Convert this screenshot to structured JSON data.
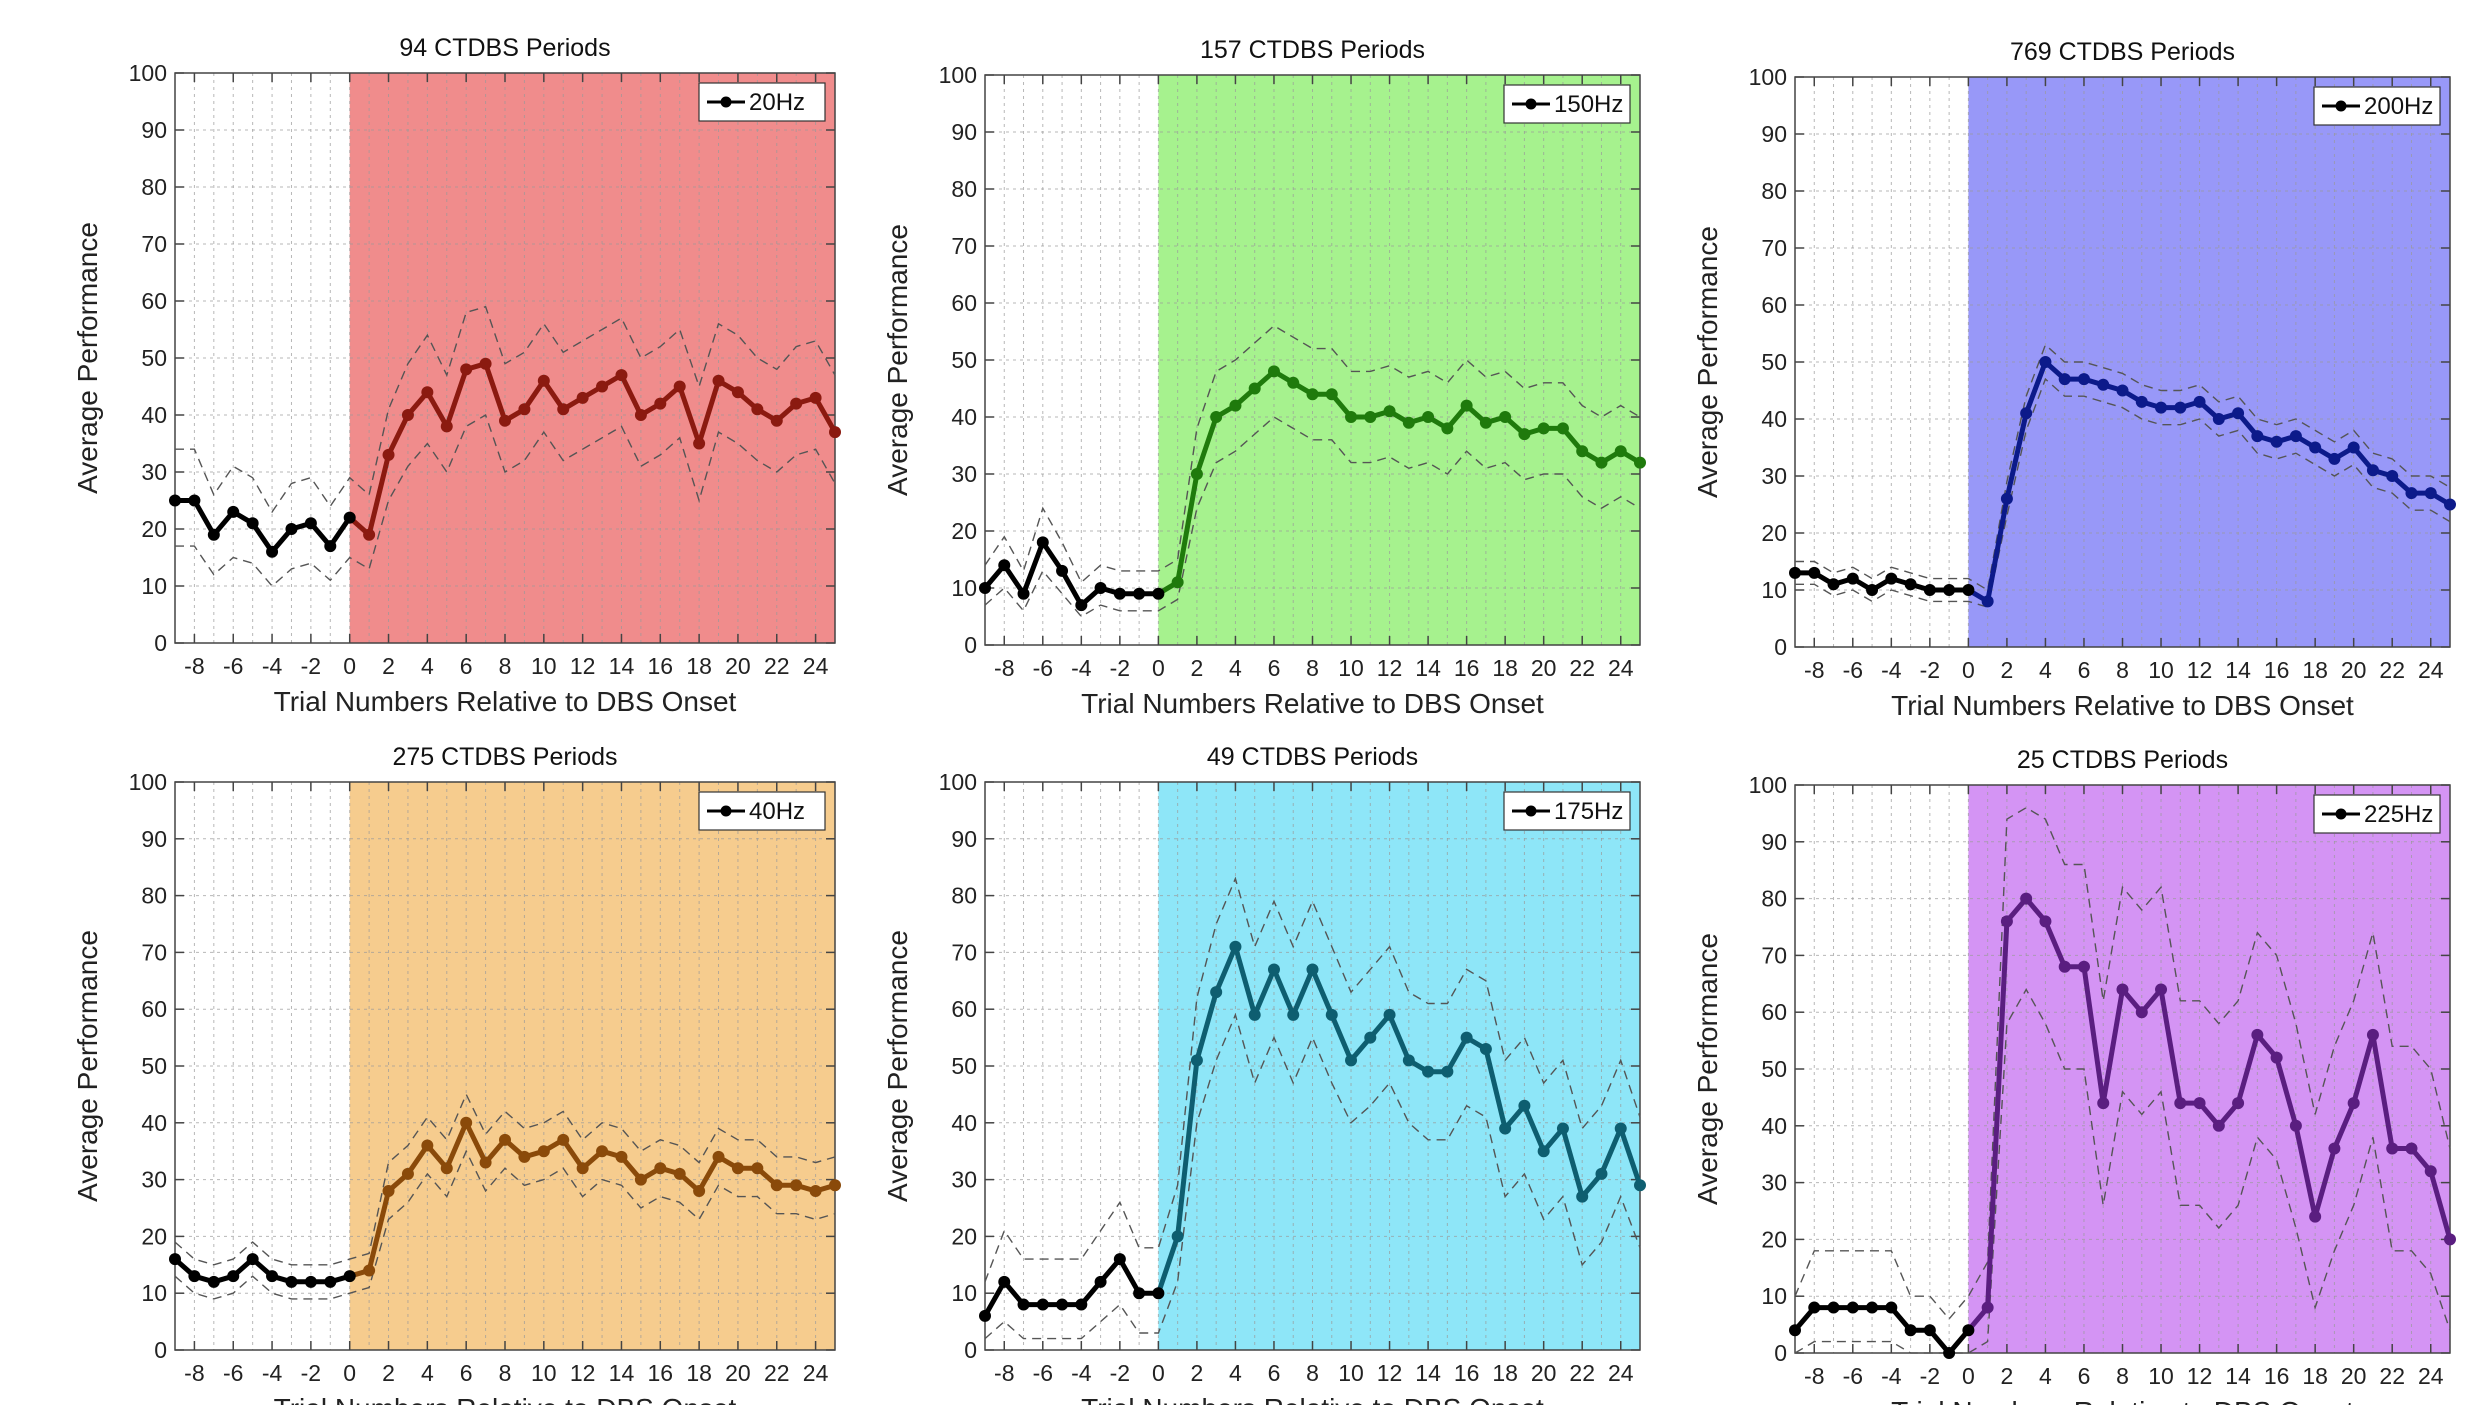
{
  "chart_data": [
    {
      "type": "line",
      "title": "94 CTDBS Periods",
      "xlabel": "Trial Numbers Relative to DBS Onset",
      "ylabel": "Average Performance",
      "xlim": [
        -9,
        25
      ],
      "ylim": [
        0,
        100
      ],
      "xticks": [
        -8,
        -6,
        -4,
        -2,
        0,
        2,
        4,
        6,
        8,
        10,
        12,
        14,
        16,
        18,
        20,
        22,
        24
      ],
      "yticks": [
        0,
        10,
        20,
        30,
        40,
        50,
        60,
        70,
        80,
        90,
        100
      ],
      "grid": true,
      "legend_position": "top-right",
      "shade_color": "#f08c8c",
      "line_pre_color": "#000000",
      "line_post_color": "#8b1a10",
      "shade_x_range": [
        0,
        25
      ],
      "x": [
        -9,
        -8,
        -7,
        -6,
        -5,
        -4,
        -3,
        -2,
        -1,
        0,
        1,
        2,
        3,
        4,
        5,
        6,
        7,
        8,
        9,
        10,
        11,
        12,
        13,
        14,
        15,
        16,
        17,
        18,
        19,
        20,
        21,
        22,
        23,
        24,
        25
      ],
      "series": [
        {
          "name": "20Hz",
          "values": [
            25,
            25,
            19,
            23,
            21,
            16,
            20,
            21,
            17,
            22,
            19,
            33,
            40,
            44,
            38,
            48,
            49,
            39,
            41,
            46,
            41,
            43,
            45,
            47,
            40,
            42,
            45,
            35,
            46,
            44,
            41,
            39,
            42,
            43,
            37
          ],
          "lower": [
            17,
            17,
            12,
            15,
            14,
            10,
            13,
            14,
            11,
            15,
            13,
            25,
            31,
            35,
            30,
            38,
            40,
            30,
            32,
            37,
            32,
            34,
            36,
            38,
            31,
            33,
            36,
            25,
            37,
            35,
            32,
            30,
            33,
            34,
            28
          ],
          "upper": [
            34,
            34,
            26,
            31,
            29,
            23,
            28,
            29,
            24,
            29,
            26,
            41,
            49,
            54,
            47,
            58,
            59,
            49,
            51,
            56,
            51,
            53,
            55,
            57,
            50,
            52,
            55,
            45,
            56,
            54,
            50,
            48,
            52,
            53,
            47
          ]
        }
      ]
    },
    {
      "type": "line",
      "title": "157 CTDBS Periods",
      "xlabel": "Trial Numbers Relative to DBS Onset",
      "ylabel": "Average Performance",
      "xlim": [
        -9,
        25
      ],
      "ylim": [
        0,
        100
      ],
      "xticks": [
        -8,
        -6,
        -4,
        -2,
        0,
        2,
        4,
        6,
        8,
        10,
        12,
        14,
        16,
        18,
        20,
        22,
        24
      ],
      "yticks": [
        0,
        10,
        20,
        30,
        40,
        50,
        60,
        70,
        80,
        90,
        100
      ],
      "grid": true,
      "legend_position": "top-right",
      "shade_color": "#a6f28e",
      "line_pre_color": "#000000",
      "line_post_color": "#1f7a0c",
      "shade_x_range": [
        0,
        25
      ],
      "x": [
        -9,
        -8,
        -7,
        -6,
        -5,
        -4,
        -3,
        -2,
        -1,
        0,
        1,
        2,
        3,
        4,
        5,
        6,
        7,
        8,
        9,
        10,
        11,
        12,
        13,
        14,
        15,
        16,
        17,
        18,
        19,
        20,
        21,
        22,
        23,
        24,
        25
      ],
      "series": [
        {
          "name": "150Hz",
          "values": [
            10,
            14,
            9,
            18,
            13,
            7,
            10,
            9,
            9,
            9,
            11,
            30,
            40,
            42,
            45,
            48,
            46,
            44,
            44,
            40,
            40,
            41,
            39,
            40,
            38,
            42,
            39,
            40,
            37,
            38,
            38,
            34,
            32,
            34,
            32
          ],
          "lower": [
            7,
            10,
            6,
            13,
            9,
            5,
            7,
            6,
            6,
            6,
            8,
            24,
            32,
            34,
            37,
            40,
            38,
            36,
            36,
            32,
            32,
            33,
            31,
            32,
            30,
            34,
            31,
            32,
            29,
            30,
            30,
            26,
            24,
            26,
            24
          ],
          "upper": [
            14,
            19,
            13,
            24,
            18,
            11,
            14,
            13,
            13,
            13,
            15,
            38,
            48,
            50,
            53,
            56,
            54,
            52,
            52,
            48,
            48,
            49,
            47,
            48,
            46,
            50,
            47,
            48,
            45,
            46,
            46,
            42,
            40,
            42,
            40
          ]
        }
      ]
    },
    {
      "type": "line",
      "title": "769 CTDBS Periods",
      "xlabel": "Trial Numbers Relative to DBS Onset",
      "ylabel": "Average Performance",
      "xlim": [
        -9,
        25
      ],
      "ylim": [
        0,
        100
      ],
      "xticks": [
        -8,
        -6,
        -4,
        -2,
        0,
        2,
        4,
        6,
        8,
        10,
        12,
        14,
        16,
        18,
        20,
        22,
        24
      ],
      "yticks": [
        0,
        10,
        20,
        30,
        40,
        50,
        60,
        70,
        80,
        90,
        100
      ],
      "grid": true,
      "legend_position": "top-right",
      "shade_color": "#9898f8",
      "line_pre_color": "#000000",
      "line_post_color": "#0c1a8a",
      "shade_x_range": [
        0,
        25
      ],
      "x": [
        -9,
        -8,
        -7,
        -6,
        -5,
        -4,
        -3,
        -2,
        -1,
        0,
        1,
        2,
        3,
        4,
        5,
        6,
        7,
        8,
        9,
        10,
        11,
        12,
        13,
        14,
        15,
        16,
        17,
        18,
        19,
        20,
        21,
        22,
        23,
        24,
        25
      ],
      "series": [
        {
          "name": "200Hz",
          "values": [
            13,
            13,
            11,
            12,
            10,
            12,
            11,
            10,
            10,
            10,
            8,
            26,
            41,
            50,
            47,
            47,
            46,
            45,
            43,
            42,
            42,
            43,
            40,
            41,
            37,
            36,
            37,
            35,
            33,
            35,
            31,
            30,
            27,
            27,
            25
          ],
          "lower": [
            11,
            11,
            9,
            10,
            8,
            10,
            9,
            8,
            8,
            8,
            7,
            23,
            38,
            47,
            44,
            44,
            43,
            42,
            40,
            39,
            39,
            40,
            37,
            38,
            34,
            33,
            34,
            32,
            30,
            32,
            28,
            27,
            24,
            24,
            22
          ],
          "upper": [
            15,
            15,
            13,
            14,
            12,
            14,
            13,
            12,
            12,
            12,
            10,
            29,
            44,
            53,
            50,
            50,
            49,
            48,
            46,
            45,
            45,
            46,
            43,
            44,
            40,
            39,
            40,
            38,
            36,
            38,
            34,
            33,
            30,
            30,
            28
          ]
        }
      ]
    },
    {
      "type": "line",
      "title": "275 CTDBS Periods",
      "xlabel": "Trial Numbers Relative to DBS Onset",
      "ylabel": "Average Performance",
      "xlim": [
        -9,
        25
      ],
      "ylim": [
        0,
        100
      ],
      "xticks": [
        -8,
        -6,
        -4,
        -2,
        0,
        2,
        4,
        6,
        8,
        10,
        12,
        14,
        16,
        18,
        20,
        22,
        24
      ],
      "yticks": [
        0,
        10,
        20,
        30,
        40,
        50,
        60,
        70,
        80,
        90,
        100
      ],
      "grid": true,
      "legend_position": "top-right",
      "shade_color": "#f6cc8e",
      "line_pre_color": "#000000",
      "line_post_color": "#8a4a0a",
      "shade_x_range": [
        0,
        25
      ],
      "x": [
        -9,
        -8,
        -7,
        -6,
        -5,
        -4,
        -3,
        -2,
        -1,
        0,
        1,
        2,
        3,
        4,
        5,
        6,
        7,
        8,
        9,
        10,
        11,
        12,
        13,
        14,
        15,
        16,
        17,
        18,
        19,
        20,
        21,
        22,
        23,
        24,
        25
      ],
      "series": [
        {
          "name": "40Hz",
          "values": [
            16,
            13,
            12,
            13,
            16,
            13,
            12,
            12,
            12,
            13,
            14,
            28,
            31,
            36,
            32,
            40,
            33,
            37,
            34,
            35,
            37,
            32,
            35,
            34,
            30,
            32,
            31,
            28,
            34,
            32,
            32,
            29,
            29,
            28,
            29
          ],
          "lower": [
            13,
            10,
            9,
            10,
            13,
            10,
            9,
            9,
            9,
            10,
            11,
            23,
            26,
            31,
            27,
            35,
            28,
            32,
            29,
            30,
            32,
            27,
            30,
            29,
            25,
            27,
            26,
            23,
            29,
            27,
            27,
            24,
            24,
            23,
            24
          ],
          "upper": [
            19,
            16,
            15,
            16,
            19,
            16,
            15,
            15,
            15,
            16,
            17,
            33,
            36,
            41,
            37,
            45,
            38,
            42,
            39,
            40,
            42,
            37,
            40,
            39,
            35,
            37,
            36,
            33,
            39,
            37,
            37,
            34,
            34,
            33,
            34
          ]
        }
      ]
    },
    {
      "type": "line",
      "title": "49 CTDBS Periods",
      "xlabel": "Trial Numbers Relative to DBS Onset",
      "ylabel": "Average Performance",
      "xlim": [
        -9,
        25
      ],
      "ylim": [
        0,
        100
      ],
      "xticks": [
        -8,
        -6,
        -4,
        -2,
        0,
        2,
        4,
        6,
        8,
        10,
        12,
        14,
        16,
        18,
        20,
        22,
        24
      ],
      "yticks": [
        0,
        10,
        20,
        30,
        40,
        50,
        60,
        70,
        80,
        90,
        100
      ],
      "grid": true,
      "legend_position": "top-right",
      "shade_color": "#8ee6f8",
      "line_pre_color": "#000000",
      "line_post_color": "#0e5e70",
      "shade_x_range": [
        0,
        25
      ],
      "x": [
        -9,
        -8,
        -7,
        -6,
        -5,
        -4,
        -3,
        -2,
        -1,
        0,
        1,
        2,
        3,
        4,
        5,
        6,
        7,
        8,
        9,
        10,
        11,
        12,
        13,
        14,
        15,
        16,
        17,
        18,
        19,
        20,
        21,
        22,
        23,
        24,
        25
      ],
      "series": [
        {
          "name": "175Hz",
          "values": [
            6,
            12,
            8,
            8,
            8,
            8,
            12,
            16,
            10,
            10,
            20,
            51,
            63,
            71,
            59,
            67,
            59,
            67,
            59,
            51,
            55,
            59,
            51,
            49,
            49,
            55,
            53,
            39,
            43,
            35,
            39,
            27,
            31,
            39,
            29
          ],
          "lower": [
            2,
            5,
            2,
            2,
            2,
            2,
            5,
            8,
            3,
            3,
            12,
            40,
            51,
            59,
            47,
            55,
            47,
            55,
            47,
            40,
            43,
            47,
            40,
            37,
            37,
            43,
            41,
            27,
            31,
            23,
            27,
            15,
            19,
            27,
            18
          ],
          "upper": [
            12,
            21,
            16,
            16,
            16,
            16,
            21,
            26,
            18,
            18,
            29,
            62,
            75,
            83,
            71,
            79,
            71,
            79,
            71,
            63,
            67,
            71,
            63,
            61,
            61,
            67,
            65,
            51,
            55,
            47,
            51,
            39,
            43,
            51,
            41
          ]
        }
      ]
    },
    {
      "type": "line",
      "title": "25 CTDBS Periods",
      "xlabel": "Trial Numbers Relative to DBS Onset",
      "ylabel": "Average Performance",
      "xlim": [
        -9,
        25
      ],
      "ylim": [
        0,
        100
      ],
      "xticks": [
        -8,
        -6,
        -4,
        -2,
        0,
        2,
        4,
        6,
        8,
        10,
        12,
        14,
        16,
        18,
        20,
        22,
        24
      ],
      "yticks": [
        0,
        10,
        20,
        30,
        40,
        50,
        60,
        70,
        80,
        90,
        100
      ],
      "grid": true,
      "legend_position": "top-right",
      "shade_color": "#d494f4",
      "line_pre_color": "#000000",
      "line_post_color": "#5a1e80",
      "shade_x_range": [
        0,
        25
      ],
      "x": [
        -9,
        -8,
        -7,
        -6,
        -5,
        -4,
        -3,
        -2,
        -1,
        0,
        1,
        2,
        3,
        4,
        5,
        6,
        7,
        8,
        9,
        10,
        11,
        12,
        13,
        14,
        15,
        16,
        17,
        18,
        19,
        20,
        21,
        22,
        23,
        24,
        25
      ],
      "series": [
        {
          "name": "225Hz",
          "values": [
            4,
            8,
            8,
            8,
            8,
            8,
            4,
            4,
            0,
            4,
            8,
            76,
            80,
            76,
            68,
            68,
            44,
            64,
            60,
            64,
            44,
            44,
            40,
            44,
            56,
            52,
            40,
            24,
            36,
            44,
            56,
            36,
            36,
            32,
            20
          ],
          "lower": [
            0,
            2,
            2,
            2,
            2,
            2,
            0,
            0,
            0,
            0,
            2,
            58,
            64,
            58,
            50,
            50,
            26,
            46,
            42,
            46,
            26,
            26,
            22,
            26,
            38,
            34,
            22,
            8,
            18,
            26,
            38,
            18,
            18,
            14,
            4
          ],
          "upper": [
            10,
            18,
            18,
            18,
            18,
            18,
            10,
            10,
            6,
            10,
            16,
            94,
            96,
            94,
            86,
            86,
            62,
            82,
            78,
            82,
            62,
            62,
            58,
            62,
            74,
            70,
            58,
            42,
            54,
            62,
            74,
            54,
            54,
            50,
            36
          ]
        }
      ]
    }
  ]
}
